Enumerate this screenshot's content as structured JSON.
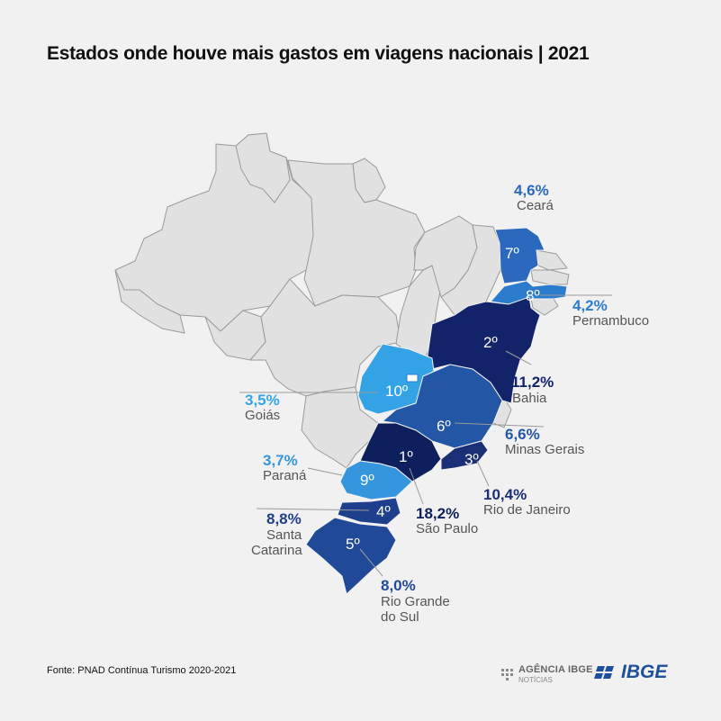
{
  "title": "Estados onde houve mais gastos em viagens nacionais | 2021",
  "source": "Fonte: PNAD Contínua Turismo 2020-2021",
  "logos": {
    "agencia_main": "AGÊNCIA IBGE",
    "agencia_sub": "NOTÍCIAS",
    "ibge": "IBGE"
  },
  "colors": {
    "background": "#f2f1f1",
    "base_state": "#e1e1e1",
    "border": "#9a9a9a",
    "dark": "#12236a",
    "mid_dark": "#1e4592",
    "mid": "#2b6fc0",
    "light": "#2e9be3"
  },
  "states": [
    {
      "rank": "1º",
      "name": "São Paulo",
      "value": "18,2%",
      "color": "#0d1f5c"
    },
    {
      "rank": "2º",
      "name": "Bahia",
      "value": "11,2%",
      "color": "#12236a"
    },
    {
      "rank": "3º",
      "name": "Rio de Janeiro",
      "value": "10,4%",
      "color": "#1b2f76"
    },
    {
      "rank": "4º",
      "name": "Santa Catarina",
      "value": "8,8%",
      "color": "#1e3f8c"
    },
    {
      "rank": "5º",
      "name": "Rio Grande do Sul",
      "value": "8,0%",
      "color": "#204a98"
    },
    {
      "rank": "6º",
      "name": "Minas Gerais",
      "value": "6,6%",
      "color": "#2456a6"
    },
    {
      "rank": "7º",
      "name": "Ceará",
      "value": "4,6%",
      "color": "#2a69bd"
    },
    {
      "rank": "8º",
      "name": "Pernambuco",
      "value": "4,2%",
      "color": "#2b7ccd"
    },
    {
      "rank": "9º",
      "name": "Paraná",
      "value": "3,7%",
      "color": "#3596dd"
    },
    {
      "rank": "10º",
      "name": "Goiás",
      "value": "3,5%",
      "color": "#33a3e6"
    }
  ],
  "labels": {
    "ceara": {
      "pct": "4,6%",
      "name": "Ceará"
    },
    "pernambuco": {
      "pct": "4,2%",
      "name": "Pernambuco"
    },
    "bahia": {
      "pct": "11,2%",
      "name": "Bahia"
    },
    "goias": {
      "pct": "3,5%",
      "name": "Goiás"
    },
    "minas": {
      "pct": "6,6%",
      "name": "Minas Gerais"
    },
    "parana": {
      "pct": "3,7%",
      "name": "Paraná"
    },
    "rio": {
      "pct": "10,4%",
      "name": "Rio de Janeiro"
    },
    "santa_catarina": {
      "pct": "8,8%",
      "name_line1": "Santa",
      "name_line2": "Catarina"
    },
    "sao_paulo": {
      "pct": "18,2%",
      "name": "São Paulo"
    },
    "rio_grande": {
      "pct": "8,0%",
      "name_line1": "Rio Grande",
      "name_line2": "do Sul"
    }
  },
  "ranks": {
    "sp": "1º",
    "ba": "2º",
    "rj": "3º",
    "sc": "4º",
    "rs": "5º",
    "mg": "6º",
    "ce": "7º",
    "pe": "8º",
    "pr": "9º",
    "go": "10º"
  }
}
